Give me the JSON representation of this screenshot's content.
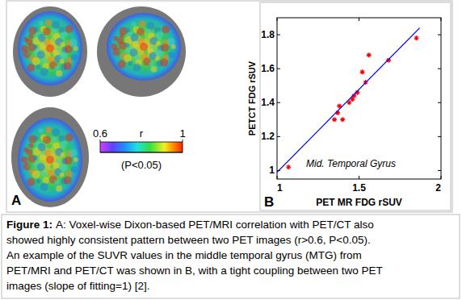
{
  "chart_data": {
    "type": "scatter",
    "panel_label": "B",
    "xlabel": "PET MR FDG rSUV",
    "ylabel": "PETCT FDG rSUV",
    "annotation": "Mid. Temporal Gyrus",
    "xlim": [
      1,
      2
    ],
    "xticks": [
      1,
      1.5,
      2
    ],
    "ylim": [
      0.95,
      1.9
    ],
    "yticks": [
      1,
      1.2,
      1.4,
      1.6,
      1.8
    ],
    "grid": false,
    "series": [
      {
        "type": "scatter",
        "color": "#ff0000",
        "marker": "star",
        "x": [
          1.07,
          1.35,
          1.37,
          1.38,
          1.4,
          1.44,
          1.46,
          1.47,
          1.49,
          1.52,
          1.54,
          1.56,
          1.68,
          1.85
        ],
        "values": [
          1.02,
          1.3,
          1.34,
          1.38,
          1.3,
          1.4,
          1.42,
          1.44,
          1.46,
          1.58,
          1.52,
          1.68,
          1.65,
          1.78
        ]
      },
      {
        "type": "line",
        "color": "#0000ff",
        "line_style": "solid",
        "x": [
          1.0,
          1.87
        ],
        "values": [
          0.99,
          1.84
        ]
      }
    ]
  },
  "panel_a": {
    "label": "A",
    "colorbar": {
      "label": "r",
      "range": [
        0.6,
        1
      ],
      "ticks": [
        0.6,
        1
      ],
      "note": "(P<0.05)"
    }
  },
  "caption": {
    "label": "Figure 1:",
    "lines": [
      "A: Voxel-wise Dixon-based PET/MRI correlation with PET/CT also",
      "showed highly consistent pattern between two PET images (r>0.6, P<0.05).",
      "An example of the SUVR values in the middle temporal gyrus (MTG) from",
      "PET/MRI and PET/CT was shown in B, with a tight coupling between two PET",
      "images (slope of fitting=1) [2]."
    ]
  }
}
